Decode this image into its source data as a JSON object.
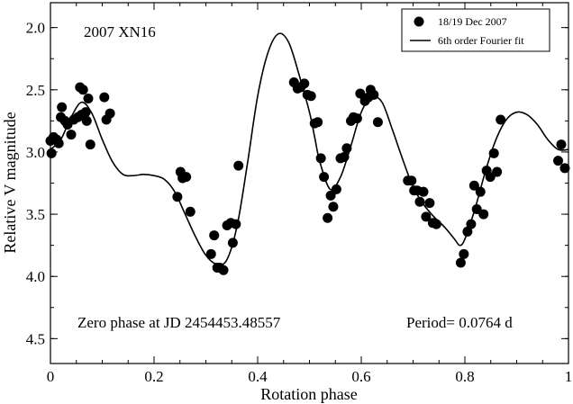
{
  "chart_data": {
    "type": "scatter",
    "object_label": "2007 XN16",
    "xlabel": "Rotation phase",
    "ylabel": "Relative V magnitude",
    "xlim": [
      0,
      1
    ],
    "ylim": [
      4.7,
      1.8
    ],
    "y_inverted": true,
    "grid": false,
    "legend_position": "top-right",
    "x_ticks": [
      {
        "value": 0,
        "label": "0"
      },
      {
        "value": 0.2,
        "label": "0.2"
      },
      {
        "value": 0.4,
        "label": "0.4"
      },
      {
        "value": 0.6,
        "label": "0.6"
      },
      {
        "value": 0.8,
        "label": "0.8"
      },
      {
        "value": 1,
        "label": "1"
      }
    ],
    "y_ticks": [
      {
        "value": 2.0,
        "label": "2.0"
      },
      {
        "value": 2.5,
        "label": "2.5"
      },
      {
        "value": 3.0,
        "label": "3.0"
      },
      {
        "value": 3.5,
        "label": "3.5"
      },
      {
        "value": 4.0,
        "label": "4.0"
      },
      {
        "value": 4.5,
        "label": "4.5"
      }
    ],
    "annotations": {
      "zero_phase": "Zero phase at JD 2454453.48557",
      "period": "Period= 0.0764 d"
    },
    "series": [
      {
        "name": "18/19 Dec 2007",
        "kind": "points",
        "color": "#000000",
        "points": [
          [
            0.0,
            2.91
          ],
          [
            0.002,
            3.01
          ],
          [
            0.006,
            2.88
          ],
          [
            0.012,
            2.9
          ],
          [
            0.016,
            2.93
          ],
          [
            0.02,
            2.72
          ],
          [
            0.022,
            2.64
          ],
          [
            0.028,
            2.75
          ],
          [
            0.033,
            2.78
          ],
          [
            0.04,
            2.86
          ],
          [
            0.045,
            2.74
          ],
          [
            0.053,
            2.72
          ],
          [
            0.057,
            2.48
          ],
          [
            0.06,
            2.7
          ],
          [
            0.063,
            2.5
          ],
          [
            0.068,
            2.68
          ],
          [
            0.07,
            2.75
          ],
          [
            0.073,
            2.57
          ],
          [
            0.077,
            2.94
          ],
          [
            0.104,
            2.56
          ],
          [
            0.108,
            2.74
          ],
          [
            0.115,
            2.69
          ],
          [
            0.245,
            3.36
          ],
          [
            0.251,
            3.16
          ],
          [
            0.255,
            3.21
          ],
          [
            0.262,
            3.2
          ],
          [
            0.27,
            3.48
          ],
          [
            0.31,
            3.82
          ],
          [
            0.316,
            3.67
          ],
          [
            0.322,
            3.93
          ],
          [
            0.327,
            3.93
          ],
          [
            0.334,
            3.95
          ],
          [
            0.341,
            3.59
          ],
          [
            0.348,
            3.57
          ],
          [
            0.352,
            3.73
          ],
          [
            0.358,
            3.58
          ],
          [
            0.363,
            3.11
          ],
          [
            0.47,
            2.44
          ],
          [
            0.477,
            2.49
          ],
          [
            0.483,
            2.48
          ],
          [
            0.49,
            2.45
          ],
          [
            0.496,
            2.54
          ],
          [
            0.503,
            2.55
          ],
          [
            0.51,
            2.77
          ],
          [
            0.516,
            2.76
          ],
          [
            0.522,
            3.05
          ],
          [
            0.528,
            3.2
          ],
          [
            0.535,
            3.53
          ],
          [
            0.541,
            3.35
          ],
          [
            0.546,
            3.44
          ],
          [
            0.552,
            3.3
          ],
          [
            0.56,
            3.05
          ],
          [
            0.567,
            3.04
          ],
          [
            0.572,
            2.97
          ],
          [
            0.58,
            2.75
          ],
          [
            0.585,
            2.72
          ],
          [
            0.592,
            2.73
          ],
          [
            0.598,
            2.53
          ],
          [
            0.607,
            2.59
          ],
          [
            0.614,
            2.56
          ],
          [
            0.618,
            2.5
          ],
          [
            0.624,
            2.54
          ],
          [
            0.632,
            2.76
          ],
          [
            0.69,
            3.23
          ],
          [
            0.697,
            3.23
          ],
          [
            0.702,
            3.31
          ],
          [
            0.708,
            3.31
          ],
          [
            0.713,
            3.4
          ],
          [
            0.72,
            3.32
          ],
          [
            0.725,
            3.52
          ],
          [
            0.732,
            3.41
          ],
          [
            0.738,
            3.57
          ],
          [
            0.745,
            3.58
          ],
          [
            0.792,
            3.89
          ],
          [
            0.798,
            3.82
          ],
          [
            0.805,
            3.64
          ],
          [
            0.812,
            3.58
          ],
          [
            0.818,
            3.27
          ],
          [
            0.823,
            3.46
          ],
          [
            0.83,
            3.32
          ],
          [
            0.836,
            3.5
          ],
          [
            0.842,
            3.15
          ],
          [
            0.849,
            3.2
          ],
          [
            0.856,
            3.01
          ],
          [
            0.862,
            3.16
          ],
          [
            0.869,
            2.74
          ],
          [
            0.98,
            3.07
          ],
          [
            0.986,
            2.94
          ],
          [
            0.993,
            3.13
          ]
        ]
      },
      {
        "name": "6th order Fourier fit",
        "kind": "line",
        "color": "#000000",
        "points": [
          [
            0.0,
            2.98
          ],
          [
            0.02,
            2.9
          ],
          [
            0.04,
            2.72
          ],
          [
            0.06,
            2.6
          ],
          [
            0.08,
            2.69
          ],
          [
            0.1,
            2.9
          ],
          [
            0.12,
            3.08
          ],
          [
            0.14,
            3.18
          ],
          [
            0.16,
            3.19
          ],
          [
            0.18,
            3.18
          ],
          [
            0.2,
            3.19
          ],
          [
            0.22,
            3.22
          ],
          [
            0.24,
            3.32
          ],
          [
            0.26,
            3.5
          ],
          [
            0.28,
            3.68
          ],
          [
            0.3,
            3.83
          ],
          [
            0.32,
            3.9
          ],
          [
            0.34,
            3.87
          ],
          [
            0.36,
            3.6
          ],
          [
            0.38,
            3.1
          ],
          [
            0.4,
            2.55
          ],
          [
            0.42,
            2.2
          ],
          [
            0.44,
            2.05
          ],
          [
            0.46,
            2.12
          ],
          [
            0.48,
            2.38
          ],
          [
            0.5,
            2.68
          ],
          [
            0.51,
            2.88
          ],
          [
            0.52,
            3.08
          ],
          [
            0.54,
            3.3
          ],
          [
            0.56,
            3.2
          ],
          [
            0.58,
            2.95
          ],
          [
            0.6,
            2.68
          ],
          [
            0.62,
            2.56
          ],
          [
            0.64,
            2.6
          ],
          [
            0.66,
            2.82
          ],
          [
            0.68,
            3.06
          ],
          [
            0.7,
            3.28
          ],
          [
            0.72,
            3.42
          ],
          [
            0.74,
            3.52
          ],
          [
            0.76,
            3.6
          ],
          [
            0.78,
            3.7
          ],
          [
            0.79,
            3.75
          ],
          [
            0.8,
            3.7
          ],
          [
            0.82,
            3.45
          ],
          [
            0.84,
            3.15
          ],
          [
            0.86,
            2.9
          ],
          [
            0.88,
            2.74
          ],
          [
            0.9,
            2.68
          ],
          [
            0.92,
            2.7
          ],
          [
            0.94,
            2.78
          ],
          [
            0.96,
            2.9
          ],
          [
            0.98,
            2.98
          ],
          [
            1.0,
            2.98
          ]
        ]
      }
    ]
  }
}
